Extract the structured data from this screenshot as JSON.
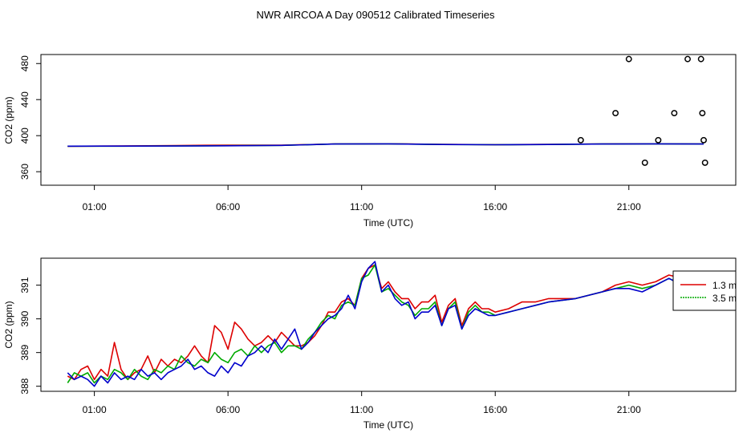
{
  "figure": {
    "title": "NWR AIRCOA A  Day 090512  Calibrated Timeseries"
  },
  "colors": {
    "red": "#dd0000",
    "green": "#00aa00",
    "blue": "#0000cc",
    "axis": "#000000"
  },
  "chart_data": [
    {
      "type": "line",
      "title": "",
      "xlabel": "Time (UTC)",
      "ylabel": "CO2 (ppm)",
      "x_unit": "hours UTC",
      "xlim": [
        -1.0,
        25.0
      ],
      "ylim": [
        345,
        490
      ],
      "x_ticks": [
        1,
        6,
        11,
        16,
        21
      ],
      "x_tick_labels": [
        "01:00",
        "06:00",
        "11:00",
        "16:00",
        "21:00"
      ],
      "y_ticks": [
        360,
        400,
        440,
        480
      ],
      "y_tick_labels": [
        "360",
        "400",
        "440",
        "480"
      ],
      "grid": false,
      "series": [
        {
          "color": "red",
          "x": [
            0.0,
            2.0,
            4.0,
            6.0,
            8.0,
            10.0,
            12.0,
            14.0,
            16.0,
            18.0,
            20.0,
            22.0,
            23.8
          ],
          "values": [
            388.2,
            388.5,
            389.0,
            389.5,
            389.4,
            390.8,
            391.0,
            390.4,
            390.0,
            390.3,
            390.8,
            391.0,
            390.8
          ]
        },
        {
          "color": "green",
          "x": [
            0.0,
            2.0,
            4.0,
            6.0,
            8.0,
            10.0,
            12.0,
            14.0,
            16.0,
            18.0,
            20.0,
            22.0,
            23.8
          ],
          "values": [
            388.3,
            388.3,
            388.6,
            388.9,
            389.2,
            390.7,
            390.9,
            390.2,
            389.9,
            390.2,
            390.7,
            390.9,
            390.7
          ]
        },
        {
          "color": "blue",
          "x": [
            0.0,
            2.0,
            4.0,
            6.0,
            8.0,
            10.0,
            12.0,
            14.0,
            16.0,
            18.0,
            20.0,
            22.0,
            23.8
          ],
          "values": [
            388.3,
            388.4,
            388.5,
            388.8,
            389.2,
            390.7,
            390.9,
            390.2,
            389.9,
            390.2,
            390.7,
            390.9,
            390.7
          ]
        }
      ],
      "markers": {
        "style": "open-circle",
        "x": [
          19.2,
          20.5,
          21.0,
          21.6,
          22.1,
          22.7,
          23.2,
          23.7,
          23.75,
          23.8,
          23.85
        ],
        "values": [
          395,
          425,
          485,
          370,
          395,
          425,
          485,
          485,
          425,
          395,
          370
        ]
      }
    },
    {
      "type": "line",
      "title": "",
      "xlabel": "Time (UTC)",
      "ylabel": "CO2 (ppm)",
      "x_unit": "hours UTC",
      "xlim": [
        -1.0,
        25.0
      ],
      "ylim": [
        387.85,
        391.8
      ],
      "x_ticks": [
        1,
        6,
        11,
        16,
        21
      ],
      "x_tick_labels": [
        "01:00",
        "06:00",
        "11:00",
        "16:00",
        "21:00"
      ],
      "y_ticks": [
        388,
        389,
        390,
        391
      ],
      "y_tick_labels": [
        "388",
        "389",
        "390",
        "391"
      ],
      "grid": false,
      "legend": {
        "position": "right",
        "entries": [
          {
            "label": "1.3 m",
            "color": "red"
          },
          {
            "label": "3.5 m",
            "color": "green"
          }
        ]
      },
      "series": [
        {
          "color": "red",
          "x": [
            0.0,
            0.25,
            0.5,
            0.75,
            1.0,
            1.25,
            1.5,
            1.75,
            2.0,
            2.25,
            2.5,
            2.75,
            3.0,
            3.25,
            3.5,
            3.75,
            4.0,
            4.25,
            4.5,
            4.75,
            5.0,
            5.25,
            5.5,
            5.75,
            6.0,
            6.25,
            6.5,
            6.75,
            7.0,
            7.25,
            7.5,
            7.75,
            8.0,
            8.25,
            8.5,
            8.75,
            9.0,
            9.25,
            9.5,
            9.75,
            10.0,
            10.25,
            10.5,
            10.75,
            11.0,
            11.25,
            11.5,
            11.75,
            12.0,
            12.25,
            12.5,
            12.75,
            13.0,
            13.25,
            13.5,
            13.75,
            14.0,
            14.25,
            14.5,
            14.75,
            15.0,
            15.25,
            15.5,
            15.75,
            16.0,
            16.5,
            17.0,
            17.5,
            18.0,
            19.0,
            20.0,
            20.5,
            21.0,
            21.5,
            22.0,
            22.5,
            23.0,
            23.5,
            23.8
          ],
          "values": [
            388.3,
            388.2,
            388.5,
            388.6,
            388.2,
            388.5,
            388.3,
            389.3,
            388.5,
            388.2,
            388.4,
            388.5,
            388.9,
            388.4,
            388.8,
            388.6,
            388.8,
            388.7,
            388.9,
            389.2,
            388.9,
            388.7,
            389.8,
            389.6,
            389.1,
            389.9,
            389.7,
            389.4,
            389.2,
            389.3,
            389.5,
            389.3,
            389.6,
            389.4,
            389.2,
            389.2,
            389.3,
            389.5,
            389.8,
            390.2,
            390.2,
            390.5,
            390.6,
            390.4,
            391.2,
            391.5,
            391.6,
            390.9,
            391.1,
            390.8,
            390.6,
            390.6,
            390.3,
            390.5,
            390.5,
            390.7,
            389.9,
            390.4,
            390.6,
            389.8,
            390.3,
            390.5,
            390.3,
            390.3,
            390.2,
            390.3,
            390.5,
            390.5,
            390.6,
            390.6,
            390.8,
            391.0,
            391.1,
            391.0,
            391.1,
            391.3,
            391.2,
            391.0,
            390.9
          ]
        },
        {
          "color": "green",
          "x": [
            0.0,
            0.25,
            0.5,
            0.75,
            1.0,
            1.25,
            1.5,
            1.75,
            2.0,
            2.25,
            2.5,
            2.75,
            3.0,
            3.25,
            3.5,
            3.75,
            4.0,
            4.25,
            4.5,
            4.75,
            5.0,
            5.25,
            5.5,
            5.75,
            6.0,
            6.25,
            6.5,
            6.75,
            7.0,
            7.25,
            7.5,
            7.75,
            8.0,
            8.25,
            8.5,
            8.75,
            9.0,
            9.25,
            9.5,
            9.75,
            10.0,
            10.25,
            10.5,
            10.75,
            11.0,
            11.25,
            11.5,
            11.75,
            12.0,
            12.25,
            12.5,
            12.75,
            13.0,
            13.25,
            13.5,
            13.75,
            14.0,
            14.25,
            14.5,
            14.75,
            15.0,
            15.25,
            15.5,
            15.75,
            16.0,
            16.5,
            17.0,
            17.5,
            18.0,
            19.0,
            20.0,
            20.5,
            21.0,
            21.5,
            22.0,
            22.5,
            23.0,
            23.5,
            23.8
          ],
          "values": [
            388.1,
            388.4,
            388.3,
            388.4,
            388.1,
            388.3,
            388.2,
            388.5,
            388.4,
            388.2,
            388.5,
            388.3,
            388.2,
            388.5,
            388.4,
            388.6,
            388.5,
            388.9,
            388.7,
            388.6,
            388.8,
            388.7,
            389.0,
            388.8,
            388.7,
            389.0,
            389.1,
            388.9,
            389.2,
            389.0,
            389.2,
            389.3,
            389.0,
            389.2,
            389.2,
            389.1,
            389.4,
            389.6,
            389.9,
            390.1,
            390.0,
            390.4,
            390.5,
            390.4,
            391.2,
            391.3,
            391.6,
            390.8,
            390.9,
            390.7,
            390.5,
            390.4,
            390.1,
            390.3,
            390.3,
            390.5,
            389.8,
            390.3,
            390.5,
            389.7,
            390.2,
            390.4,
            390.2,
            390.2,
            390.1,
            390.2,
            390.3,
            390.4,
            390.5,
            390.6,
            390.8,
            390.9,
            391.0,
            390.9,
            391.0,
            391.2,
            391.0,
            390.8,
            390.8
          ]
        },
        {
          "color": "blue",
          "x": [
            0.0,
            0.25,
            0.5,
            0.75,
            1.0,
            1.25,
            1.5,
            1.75,
            2.0,
            2.25,
            2.5,
            2.75,
            3.0,
            3.25,
            3.5,
            3.75,
            4.0,
            4.25,
            4.5,
            4.75,
            5.0,
            5.25,
            5.5,
            5.75,
            6.0,
            6.25,
            6.5,
            6.75,
            7.0,
            7.25,
            7.5,
            7.75,
            8.0,
            8.25,
            8.5,
            8.75,
            9.0,
            9.25,
            9.5,
            9.75,
            10.0,
            10.25,
            10.5,
            10.75,
            11.0,
            11.25,
            11.5,
            11.75,
            12.0,
            12.25,
            12.5,
            12.75,
            13.0,
            13.25,
            13.5,
            13.75,
            14.0,
            14.25,
            14.5,
            14.75,
            15.0,
            15.25,
            15.5,
            15.75,
            16.0,
            16.5,
            17.0,
            17.5,
            18.0,
            19.0,
            20.0,
            20.5,
            21.0,
            21.5,
            22.0,
            22.5,
            23.0,
            23.5,
            23.8
          ],
          "values": [
            388.4,
            388.2,
            388.3,
            388.2,
            388.0,
            388.3,
            388.1,
            388.4,
            388.2,
            388.3,
            388.2,
            388.5,
            388.3,
            388.4,
            388.2,
            388.4,
            388.5,
            388.6,
            388.8,
            388.5,
            388.6,
            388.4,
            388.3,
            388.6,
            388.4,
            388.7,
            388.6,
            388.9,
            389.0,
            389.2,
            389.0,
            389.4,
            389.1,
            389.4,
            389.7,
            389.1,
            389.3,
            389.6,
            389.8,
            390.0,
            390.1,
            390.3,
            390.7,
            390.3,
            391.1,
            391.5,
            391.7,
            390.8,
            391.0,
            390.6,
            390.4,
            390.5,
            390.0,
            390.2,
            390.2,
            390.4,
            389.8,
            390.3,
            390.4,
            389.7,
            390.1,
            390.3,
            390.2,
            390.1,
            390.1,
            390.2,
            390.3,
            390.4,
            390.5,
            390.6,
            390.8,
            390.9,
            390.9,
            390.8,
            391.0,
            391.2,
            391.0,
            390.9,
            390.8
          ]
        }
      ]
    }
  ]
}
